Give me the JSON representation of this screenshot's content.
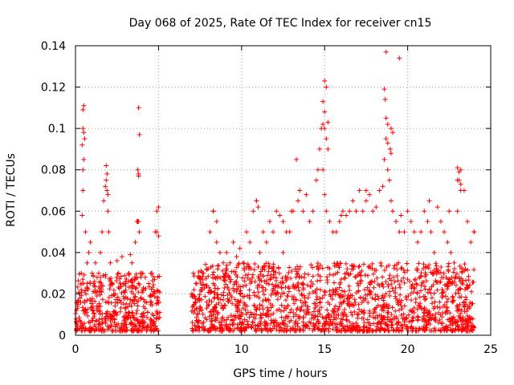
{
  "chart_data": {
    "type": "scatter",
    "title": "Day 068 of 2025, Rate Of TEC Index for receiver cn15",
    "xlabel": "GPS time / hours",
    "ylabel": "ROTI / TECUs",
    "xlim": [
      0,
      25
    ],
    "ylim": [
      0,
      0.14
    ],
    "x_ticks": [
      0,
      5,
      10,
      15,
      20,
      25
    ],
    "x_tick_labels": [
      "0",
      "5",
      "10",
      "15",
      "20",
      "25"
    ],
    "y_ticks": [
      0,
      0.02,
      0.04,
      0.06,
      0.08,
      0.1,
      0.12,
      0.14
    ],
    "y_tick_labels": [
      "0",
      "0.02",
      "0.04",
      "0.06",
      "0.08",
      "0.1",
      "0.12",
      "0.14"
    ],
    "grid": true,
    "marker": "+",
    "series": [
      {
        "name": "ROTI",
        "color": "#ff0000",
        "x": [
          0.05,
          0.15,
          0.25,
          0.35,
          0.4,
          0.45,
          0.5,
          0.55,
          0.6,
          0.7,
          0.8,
          0.9,
          1.0,
          1.1,
          1.2,
          1.3,
          1.4,
          1.5,
          1.6,
          1.7,
          1.8,
          1.85,
          1.9,
          1.95,
          2.0,
          2.1,
          2.2,
          2.4,
          2.6,
          2.8,
          3.0,
          3.2,
          3.4,
          3.6,
          3.7,
          3.75,
          3.8,
          3.85,
          3.9,
          4.0,
          4.2,
          4.4,
          4.6,
          4.8,
          4.9,
          5.0,
          7.0,
          7.1,
          7.3,
          7.5,
          7.7,
          7.9,
          8.1,
          8.3,
          8.5,
          8.7,
          8.9,
          9.1,
          9.3,
          9.5,
          9.7,
          9.9,
          10.1,
          10.3,
          10.5,
          10.7,
          10.9,
          11.1,
          11.3,
          11.5,
          11.7,
          11.9,
          12.1,
          12.3,
          12.5,
          12.7,
          12.9,
          13.1,
          13.3,
          13.5,
          13.7,
          13.9,
          14.1,
          14.3,
          14.5,
          14.6,
          14.7,
          14.8,
          14.9,
          15.0,
          15.1,
          15.3,
          15.5,
          15.7,
          15.9,
          16.1,
          16.3,
          16.5,
          16.7,
          16.9,
          17.1,
          17.3,
          17.5,
          17.7,
          17.9,
          18.1,
          18.3,
          18.5,
          18.6,
          18.7,
          18.8,
          18.9,
          19.0,
          19.1,
          19.3,
          19.5,
          19.6,
          19.8,
          20.0,
          20.2,
          20.4,
          20.6,
          20.8,
          21.0,
          21.2,
          21.4,
          21.6,
          21.8,
          22.0,
          22.2,
          22.4,
          22.6,
          22.8,
          23.0,
          23.1,
          23.2,
          23.4,
          23.6,
          23.8,
          24.0,
          0.45,
          0.5,
          0.45,
          0.5,
          0.4,
          0.45,
          3.8,
          3.85,
          15.0,
          15.1,
          14.9,
          15.0,
          15.2,
          18.7,
          18.6,
          18.65,
          19.5,
          19.0,
          19.1,
          18.8,
          18.95,
          1.85,
          1.9,
          1.95,
          23.0,
          23.1,
          23.2,
          3.75,
          3.8,
          3.8,
          14.9,
          15.0,
          15.1,
          15.2,
          18.7,
          18.8,
          19.0,
          23.0,
          23.2,
          4.9,
          5.0,
          2.5,
          3.3,
          8.3,
          8.5,
          10.9,
          11.0,
          12.5,
          13.0,
          13.4,
          16.0,
          17.5,
          21.3,
          22.5,
          24.0
        ],
        "y": [
          0.012,
          0.015,
          0.02,
          0.03,
          0.058,
          0.07,
          0.085,
          0.095,
          0.05,
          0.035,
          0.04,
          0.045,
          0.03,
          0.025,
          0.035,
          0.028,
          0.03,
          0.04,
          0.05,
          0.065,
          0.072,
          0.075,
          0.07,
          0.06,
          0.05,
          0.035,
          0.025,
          0.02,
          0.03,
          0.038,
          0.025,
          0.03,
          0.035,
          0.045,
          0.055,
          0.08,
          0.078,
          0.05,
          0.03,
          0.03,
          0.028,
          0.025,
          0.03,
          0.05,
          0.06,
          0.062,
          0.02,
          0.03,
          0.025,
          0.028,
          0.03,
          0.032,
          0.05,
          0.06,
          0.045,
          0.04,
          0.035,
          0.04,
          0.035,
          0.045,
          0.038,
          0.042,
          0.035,
          0.05,
          0.045,
          0.06,
          0.065,
          0.04,
          0.05,
          0.045,
          0.055,
          0.05,
          0.06,
          0.058,
          0.04,
          0.05,
          0.05,
          0.06,
          0.085,
          0.07,
          0.06,
          0.068,
          0.055,
          0.06,
          0.075,
          0.08,
          0.09,
          0.1,
          0.08,
          0.068,
          0.06,
          0.055,
          0.05,
          0.05,
          0.055,
          0.06,
          0.058,
          0.06,
          0.065,
          0.06,
          0.07,
          0.06,
          0.065,
          0.068,
          0.06,
          0.062,
          0.07,
          0.072,
          0.085,
          0.095,
          0.08,
          0.075,
          0.065,
          0.06,
          0.055,
          0.05,
          0.058,
          0.05,
          0.06,
          0.055,
          0.05,
          0.045,
          0.05,
          0.06,
          0.055,
          0.05,
          0.04,
          0.062,
          0.055,
          0.05,
          0.045,
          0.04,
          0.035,
          0.06,
          0.075,
          0.08,
          0.07,
          0.055,
          0.045,
          0.05,
          0.109,
          0.111,
          0.1,
          0.098,
          0.092,
          0.08,
          0.11,
          0.097,
          0.123,
          0.12,
          0.113,
          0.108,
          0.103,
          0.137,
          0.119,
          0.114,
          0.134,
          0.1,
          0.098,
          0.093,
          0.09,
          0.082,
          0.078,
          0.068,
          0.081,
          0.079,
          0.073,
          0.055,
          0.055,
          0.077,
          0.102,
          0.1,
          0.095,
          0.09,
          0.105,
          0.102,
          0.088,
          0.075,
          0.07,
          0.05,
          0.048,
          0.036,
          0.039,
          0.06,
          0.055,
          0.065,
          0.062,
          0.055,
          0.06,
          0.065,
          0.058,
          0.07,
          0.065,
          0.06,
          0.05
        ]
      }
    ],
    "dense_band": {
      "description": "dense cloud of low ROTI values",
      "segments": [
        {
          "x_start": 0.0,
          "x_end": 5.1,
          "y_min": 0.002,
          "y_max": 0.03
        },
        {
          "x_start": 7.0,
          "x_end": 24.0,
          "y_min": 0.002,
          "y_max": 0.035
        }
      ]
    }
  }
}
